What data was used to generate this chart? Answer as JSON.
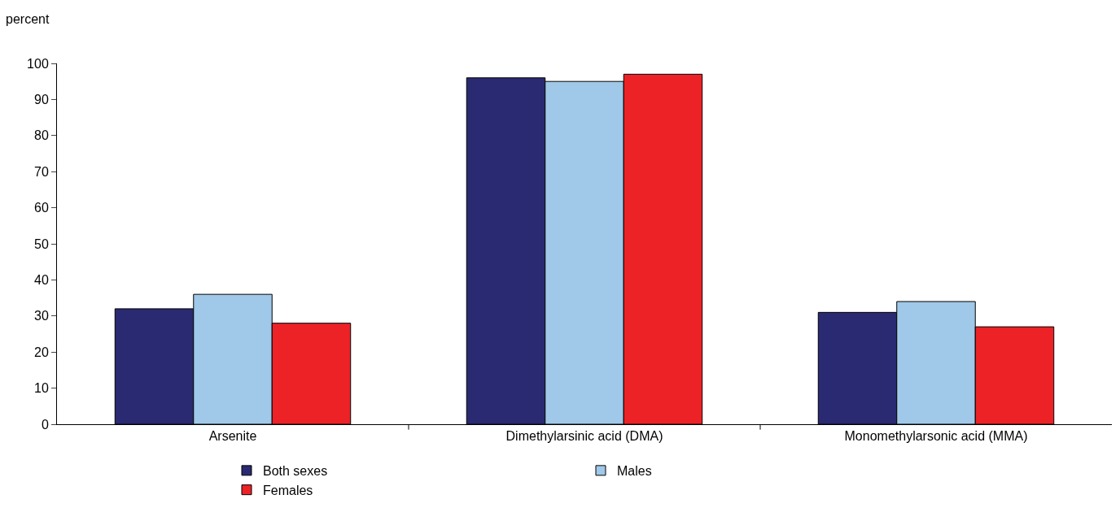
{
  "chart_data": {
    "type": "bar",
    "ylabel": "percent",
    "categories": [
      "Arsenite",
      "Dimethylarsinic acid (DMA)",
      "Monomethylarsonic acid (MMA)"
    ],
    "series": [
      {
        "name": "Both sexes",
        "color": "#2a2a72",
        "values": [
          32,
          96,
          31
        ]
      },
      {
        "name": "Males",
        "color": "#a0c8e8",
        "values": [
          36,
          95,
          34
        ]
      },
      {
        "name": "Females",
        "color": "#ec2227",
        "values": [
          28,
          97,
          27
        ]
      }
    ],
    "ylim": [
      0,
      100
    ],
    "yticks": [
      0,
      10,
      20,
      30,
      40,
      50,
      60,
      70,
      80,
      90,
      100
    ],
    "grid": false,
    "legend": "bottom"
  }
}
